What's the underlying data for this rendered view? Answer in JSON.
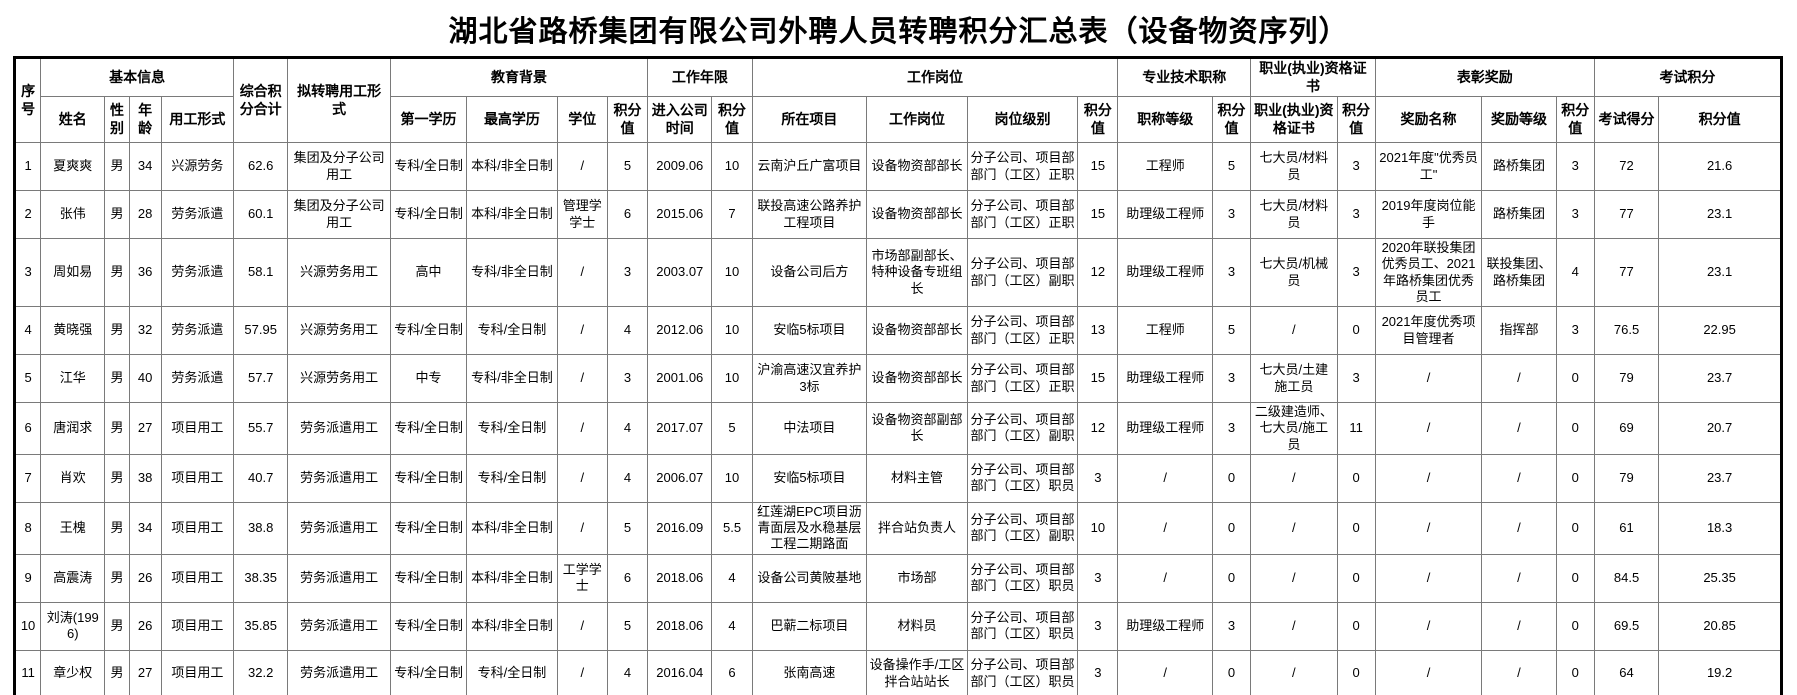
{
  "title": "湖北省路桥集团有限公司外聘人员转聘积分汇总表（设备物资序列）",
  "table": {
    "header_groups": [
      {
        "label": "序号",
        "colspan": 1,
        "rowspan": 2
      },
      {
        "label": "基本信息",
        "colspan": 4,
        "rowspan": 1
      },
      {
        "label": "综合积分合计",
        "colspan": 1,
        "rowspan": 2
      },
      {
        "label": "拟转聘用工形式",
        "colspan": 1,
        "rowspan": 2
      },
      {
        "label": "教育背景",
        "colspan": 4,
        "rowspan": 1
      },
      {
        "label": "工作年限",
        "colspan": 2,
        "rowspan": 1
      },
      {
        "label": "工作岗位",
        "colspan": 4,
        "rowspan": 1
      },
      {
        "label": "专业技术职称",
        "colspan": 2,
        "rowspan": 1
      },
      {
        "label": "职业(执业)资格证书",
        "colspan": 2,
        "rowspan": 1
      },
      {
        "label": "表彰奖励",
        "colspan": 3,
        "rowspan": 1
      },
      {
        "label": "考试积分",
        "colspan": 2,
        "rowspan": 1
      }
    ],
    "sub_headers": [
      "姓名",
      "性别",
      "年龄",
      "用工形式",
      "第一学历",
      "最高学历",
      "学位",
      "积分值",
      "进入公司时间",
      "积分值",
      "所在项目",
      "工作岗位",
      "岗位级别",
      "积分值",
      "职称等级",
      "积分值",
      "职业(执业)资格证书",
      "积分值",
      "奖励名称",
      "奖励等级",
      "积分值",
      "考试得分",
      "积分值"
    ],
    "rows": [
      [
        "1",
        "夏爽爽",
        "男",
        "34",
        "兴源劳务",
        "62.6",
        "集团及分子公司用工",
        "专科/全日制",
        "本科/非全日制",
        "/",
        "5",
        "2009.06",
        "10",
        "云南沪丘广富项目",
        "设备物资部部长",
        "分子公司、项目部部门（工区）正职",
        "15",
        "工程师",
        "5",
        "七大员/材料员",
        "3",
        "2021年度\"优秀员工\"",
        "路桥集团",
        "3",
        "72",
        "21.6"
      ],
      [
        "2",
        "张伟",
        "男",
        "28",
        "劳务派遣",
        "60.1",
        "集团及分子公司用工",
        "专科/全日制",
        "本科/非全日制",
        "管理学学士",
        "6",
        "2015.06",
        "7",
        "联投高速公路养护工程项目",
        "设备物资部部长",
        "分子公司、项目部部门（工区）正职",
        "15",
        "助理级工程师",
        "3",
        "七大员/材料员",
        "3",
        "2019年度岗位能手",
        "路桥集团",
        "3",
        "77",
        "23.1"
      ],
      [
        "3",
        "周如易",
        "男",
        "36",
        "劳务派遣",
        "58.1",
        "兴源劳务用工",
        "高中",
        "专科/非全日制",
        "/",
        "3",
        "2003.07",
        "10",
        "设备公司后方",
        "市场部副部长、特种设备专班组长",
        "分子公司、项目部部门（工区）副职",
        "12",
        "助理级工程师",
        "3",
        "七大员/机械员",
        "3",
        "2020年联投集团优秀员工、2021年路桥集团优秀员工",
        "联投集团、路桥集团",
        "4",
        "77",
        "23.1"
      ],
      [
        "4",
        "黄晓强",
        "男",
        "32",
        "劳务派遣",
        "57.95",
        "兴源劳务用工",
        "专科/全日制",
        "专科/全日制",
        "/",
        "4",
        "2012.06",
        "10",
        "安临5标项目",
        "设备物资部部长",
        "分子公司、项目部部门（工区）正职",
        "13",
        "工程师",
        "5",
        "/",
        "0",
        "2021年度优秀项目管理者",
        "指挥部",
        "3",
        "76.5",
        "22.95"
      ],
      [
        "5",
        "江华",
        "男",
        "40",
        "劳务派遣",
        "57.7",
        "兴源劳务用工",
        "中专",
        "专科/非全日制",
        "/",
        "3",
        "2001.06",
        "10",
        "沪渝高速汉宜养护3标",
        "设备物资部部长",
        "分子公司、项目部部门（工区）正职",
        "15",
        "助理级工程师",
        "3",
        "七大员/土建施工员",
        "3",
        "/",
        "/",
        "0",
        "79",
        "23.7"
      ],
      [
        "6",
        "唐润求",
        "男",
        "27",
        "项目用工",
        "55.7",
        "劳务派遣用工",
        "专科/全日制",
        "专科/全日制",
        "/",
        "4",
        "2017.07",
        "5",
        "中法项目",
        "设备物资部副部长",
        "分子公司、项目部部门（工区）副职",
        "12",
        "助理级工程师",
        "3",
        "二级建造师、七大员/施工员",
        "11",
        "/",
        "/",
        "0",
        "69",
        "20.7"
      ],
      [
        "7",
        "肖欢",
        "男",
        "38",
        "项目用工",
        "40.7",
        "劳务派遣用工",
        "专科/全日制",
        "专科/全日制",
        "/",
        "4",
        "2006.07",
        "10",
        "安临5标项目",
        "材料主管",
        "分子公司、项目部部门（工区）职员",
        "3",
        "/",
        "0",
        "/",
        "0",
        "/",
        "/",
        "0",
        "79",
        "23.7"
      ],
      [
        "8",
        "王槐",
        "男",
        "34",
        "项目用工",
        "38.8",
        "劳务派遣用工",
        "专科/全日制",
        "本科/非全日制",
        "/",
        "5",
        "2016.09",
        "5.5",
        "红莲湖EPC项目沥青面层及水稳基层工程二期路面",
        "拌合站负责人",
        "分子公司、项目部部门（工区）副职",
        "10",
        "/",
        "0",
        "/",
        "0",
        "/",
        "/",
        "0",
        "61",
        "18.3"
      ],
      [
        "9",
        "高震涛",
        "男",
        "26",
        "项目用工",
        "38.35",
        "劳务派遣用工",
        "专科/全日制",
        "本科/非全日制",
        "工学学士",
        "6",
        "2018.06",
        "4",
        "设备公司黄陂基地",
        "市场部",
        "分子公司、项目部部门（工区）职员",
        "3",
        "/",
        "0",
        "/",
        "0",
        "/",
        "/",
        "0",
        "84.5",
        "25.35"
      ],
      [
        "10",
        "刘涛(1996)",
        "男",
        "26",
        "项目用工",
        "35.85",
        "劳务派遣用工",
        "专科/全日制",
        "本科/非全日制",
        "/",
        "5",
        "2018.06",
        "4",
        "巴蕲二标项目",
        "材料员",
        "分子公司、项目部部门（工区）职员",
        "3",
        "助理级工程师",
        "3",
        "/",
        "0",
        "/",
        "/",
        "0",
        "69.5",
        "20.85"
      ],
      [
        "11",
        "章少权",
        "男",
        "27",
        "项目用工",
        "32.2",
        "劳务派遣用工",
        "专科/全日制",
        "专科/全日制",
        "/",
        "4",
        "2016.04",
        "6",
        "张南高速",
        "设备操作手/工区拌合站站长",
        "分子公司、项目部部门（工区）职员",
        "3",
        "/",
        "0",
        "/",
        "0",
        "/",
        "/",
        "0",
        "64",
        "19.2"
      ]
    ]
  }
}
